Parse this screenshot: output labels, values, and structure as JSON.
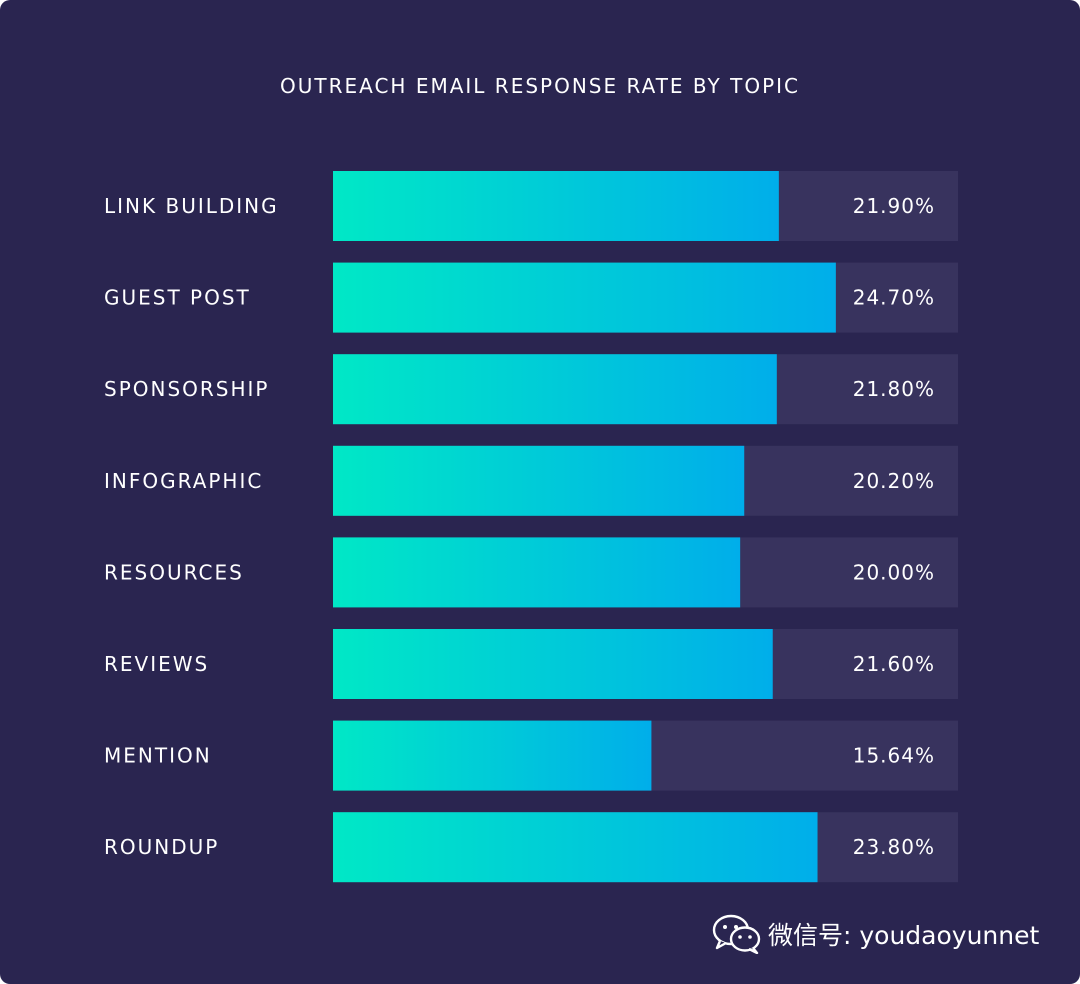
{
  "chart_data": {
    "type": "bar",
    "orientation": "horizontal",
    "title": "OUTREACH EMAIL RESPONSE RATE BY TOPIC",
    "categories": [
      "LINK BUILDING",
      "GUEST POST",
      "SPONSORSHIP",
      "INFOGRAPHIC",
      "RESOURCES",
      "REVIEWS",
      "MENTION",
      "ROUNDUP"
    ],
    "values": [
      21.9,
      24.7,
      21.8,
      20.2,
      20.0,
      21.6,
      15.64,
      23.8
    ],
    "value_labels": [
      "21.90%",
      "24.70%",
      "21.80%",
      "20.20%",
      "20.00%",
      "21.60%",
      "15.64%",
      "23.80%"
    ],
    "xlim": [
      0,
      30.7
    ],
    "grid": false,
    "colors": {
      "background": "#2a2550",
      "track": "#38335e",
      "bar_gradient_start": "#00e8c6",
      "bar_gradient_end": "#00aeea",
      "text": "#ffffff"
    }
  },
  "watermark": {
    "icon": "wechat-icon",
    "text": "微信号: youdaoyunnet"
  }
}
